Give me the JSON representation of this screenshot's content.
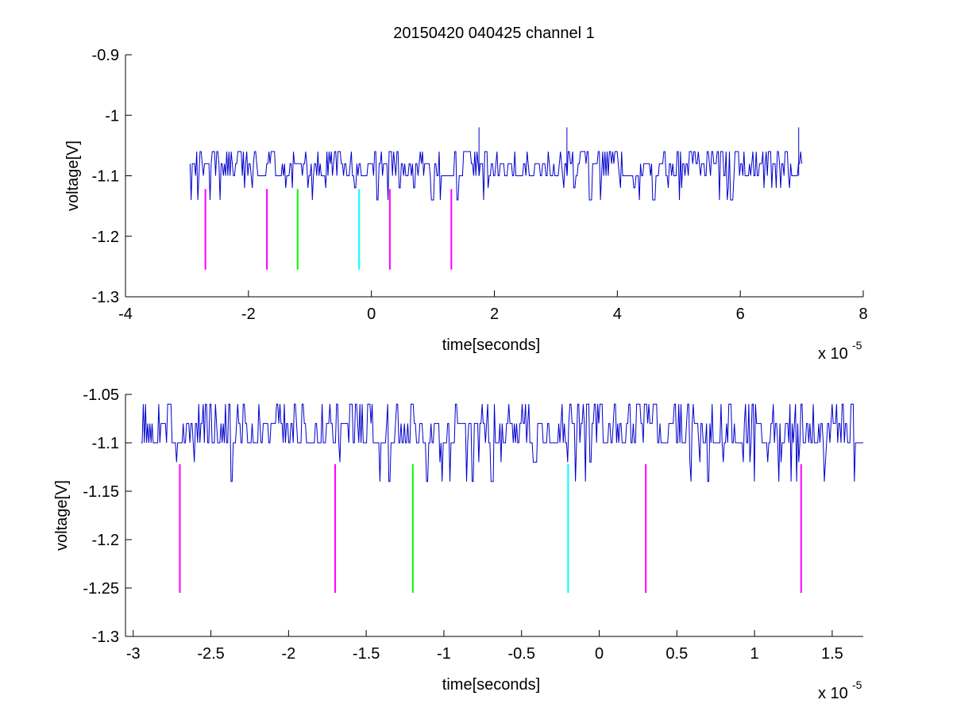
{
  "figure_title": "20150420 040425 channel 1",
  "chart_data": [
    {
      "type": "line",
      "title": "20150420 040425 channel 1",
      "xlabel": "time[seconds]",
      "ylabel": "voltage[V]",
      "x_multiplier_label": "x 10",
      "x_multiplier_exponent": "-5",
      "xlim": [
        -4,
        8
      ],
      "ylim": [
        -1.3,
        -0.9
      ],
      "xticks": [
        -4,
        -2,
        0,
        2,
        4,
        6,
        8
      ],
      "xtick_labels": [
        "-4",
        "-2",
        "0",
        "2",
        "4",
        "6",
        "8"
      ],
      "yticks": [
        -1.3,
        -1.2,
        -1.1,
        -1,
        -0.9
      ],
      "ytick_labels": [
        "-1.3",
        "-1.2",
        "-1.1",
        "-1",
        "-0.9"
      ],
      "grid": false,
      "signal": {
        "color": "#0000cc",
        "x_start": -2.95,
        "x_end": 7.0,
        "baseline": -1.1,
        "levels": [
          -1.14,
          -1.12,
          -1.1,
          -1.08,
          -1.06
        ],
        "spikes": [
          {
            "x": 1.75,
            "y": -1.02
          },
          {
            "x": 3.18,
            "y": -1.02
          },
          {
            "x": 6.95,
            "y": -1.02
          }
        ]
      },
      "markers": [
        {
          "x": -2.7,
          "y_from": -1.255,
          "y_to": -1.122,
          "color": "#ff00ff"
        },
        {
          "x": -1.7,
          "y_from": -1.255,
          "y_to": -1.122,
          "color": "#ff00ff"
        },
        {
          "x": -1.2,
          "y_from": -1.255,
          "y_to": -1.122,
          "color": "#00ff00"
        },
        {
          "x": -0.2,
          "y_from": -1.255,
          "y_to": -1.122,
          "color": "#00ffff"
        },
        {
          "x": 0.3,
          "y_from": -1.255,
          "y_to": -1.122,
          "color": "#ff00ff"
        },
        {
          "x": 1.3,
          "y_from": -1.255,
          "y_to": -1.122,
          "color": "#ff00ff"
        }
      ]
    },
    {
      "type": "line",
      "title": "",
      "xlabel": "time[seconds]",
      "ylabel": "voltage[V]",
      "x_multiplier_label": "x 10",
      "x_multiplier_exponent": "-5",
      "xlim": [
        -3.05,
        1.7
      ],
      "ylim": [
        -1.3,
        -1.05
      ],
      "xticks": [
        -3,
        -2.5,
        -2,
        -1.5,
        -1,
        -0.5,
        0,
        0.5,
        1,
        1.5
      ],
      "xtick_labels": [
        "-3",
        "-2.5",
        "-2",
        "-1.5",
        "-1",
        "-0.5",
        "0",
        "0.5",
        "1",
        "1.5"
      ],
      "yticks": [
        -1.3,
        -1.25,
        -1.2,
        -1.15,
        -1.1,
        -1.05
      ],
      "ytick_labels": [
        "-1.3",
        "-1.25",
        "-1.2",
        "-1.15",
        "-1.1",
        "-1.05"
      ],
      "grid": false,
      "signal": {
        "color": "#0000cc",
        "x_start": -2.95,
        "x_end": 1.7,
        "baseline": -1.1,
        "levels": [
          -1.14,
          -1.12,
          -1.1,
          -1.08,
          -1.06
        ],
        "spikes": []
      },
      "markers": [
        {
          "x": -2.7,
          "y_from": -1.255,
          "y_to": -1.122,
          "color": "#ff00ff"
        },
        {
          "x": -1.7,
          "y_from": -1.255,
          "y_to": -1.122,
          "color": "#ff00ff"
        },
        {
          "x": -1.2,
          "y_from": -1.255,
          "y_to": -1.122,
          "color": "#00ff00"
        },
        {
          "x": -0.2,
          "y_from": -1.255,
          "y_to": -1.122,
          "color": "#00ffff"
        },
        {
          "x": 0.3,
          "y_from": -1.255,
          "y_to": -1.122,
          "color": "#ff00ff"
        },
        {
          "x": 1.3,
          "y_from": -1.255,
          "y_to": -1.122,
          "color": "#ff00ff"
        }
      ]
    }
  ]
}
